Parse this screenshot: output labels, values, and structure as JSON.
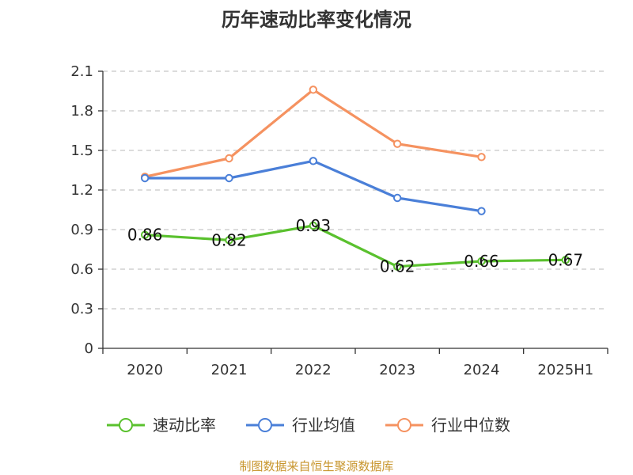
{
  "chart_data": {
    "type": "line",
    "title": "历年速动比率变化情况",
    "categories": [
      "2020",
      "2021",
      "2022",
      "2023",
      "2024",
      "2025H1"
    ],
    "ylim": [
      0,
      2.1
    ],
    "yticks": [
      "0",
      "0.3",
      "0.6",
      "0.9",
      "1.2",
      "1.5",
      "1.8",
      "2.1"
    ],
    "grid": true,
    "legend_position": "bottom",
    "series": [
      {
        "name": "速动比率",
        "color": "#5ac12e",
        "values": [
          0.86,
          0.82,
          0.93,
          0.62,
          0.66,
          0.67
        ],
        "labels": [
          "0.86",
          "0.82",
          "0.93",
          "0.62",
          "0.66",
          "0.67"
        ]
      },
      {
        "name": "行业均值",
        "color": "#4a7fd8",
        "values": [
          1.29,
          1.29,
          1.42,
          1.14,
          1.04,
          null
        ]
      },
      {
        "name": "行业中位数",
        "color": "#f59260",
        "values": [
          1.3,
          1.44,
          1.96,
          1.55,
          1.45,
          null
        ]
      }
    ]
  },
  "source": "制图数据来自恒生聚源数据库"
}
